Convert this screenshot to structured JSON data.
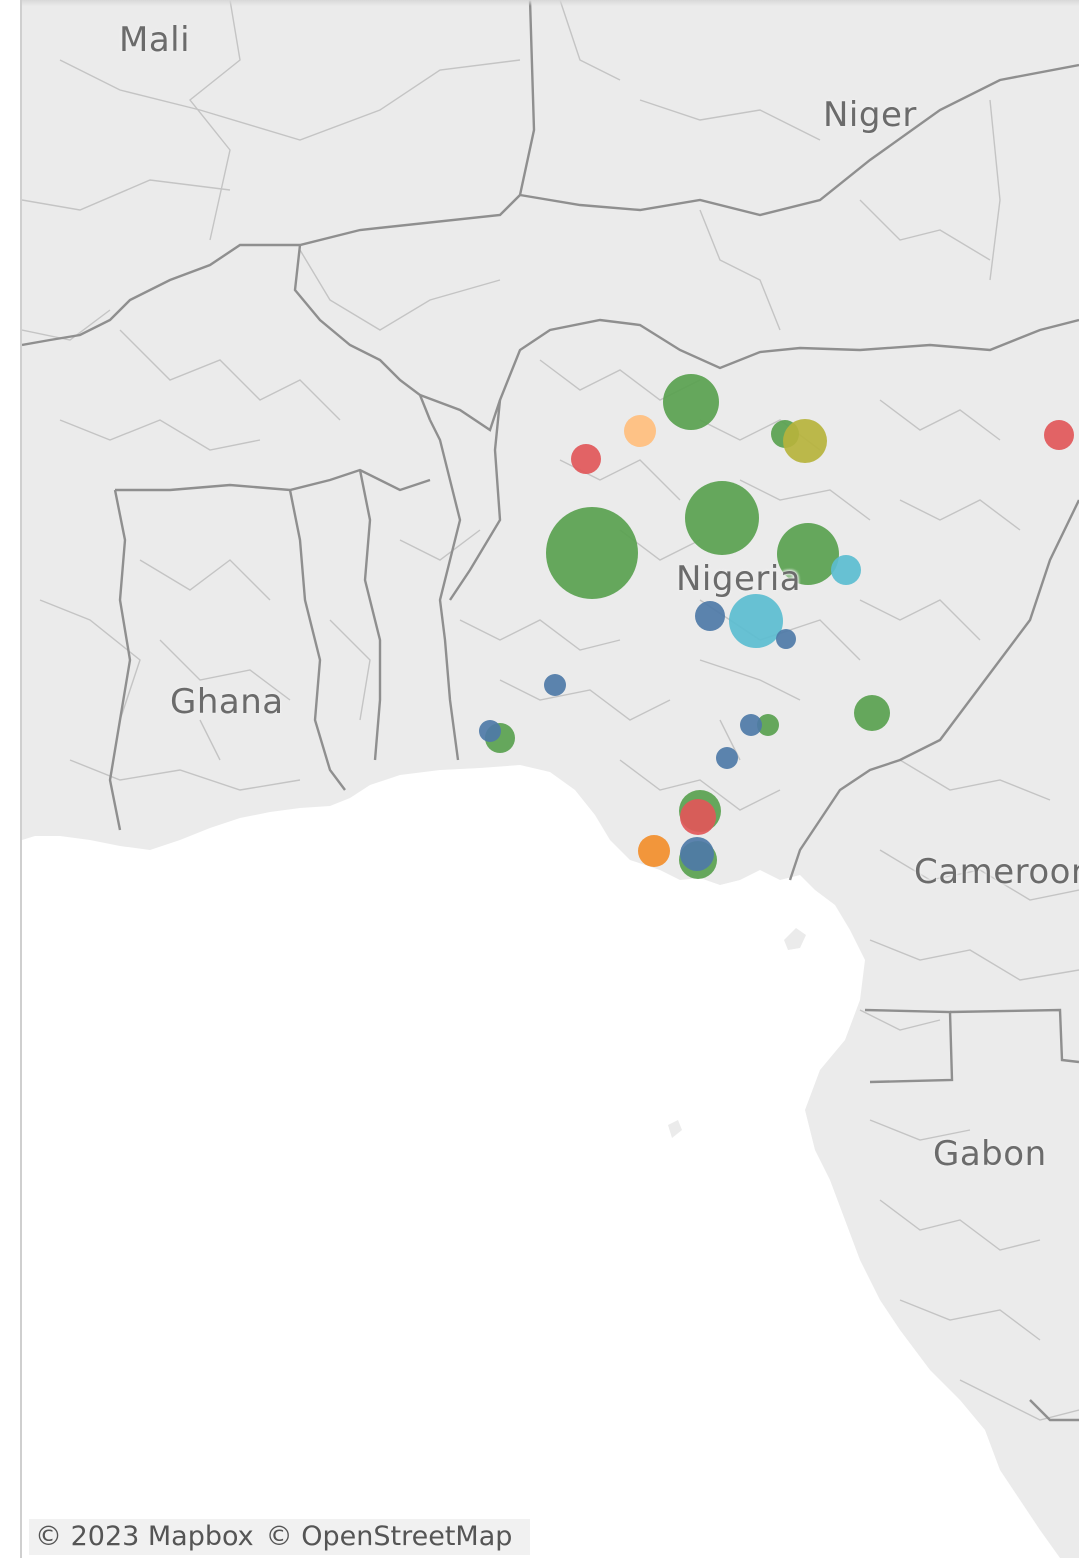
{
  "map": {
    "labels": {
      "mali": "Mali",
      "niger": "Niger",
      "nigeria": "Nigeria",
      "ghana": "Ghana",
      "cameroon": "Cameroon",
      "gabon": "Gabon"
    },
    "attribution": {
      "mapbox": "© 2023 Mapbox",
      "osm": "© OpenStreetMap"
    },
    "colors": {
      "land": "#ebebeb",
      "water": "#ffffff",
      "border": "#8f8f8f",
      "subdivision": "#b5b5b5",
      "green": "#59a14f",
      "blue": "#4e79a7",
      "red": "#e15759",
      "orange": "#f28e2b",
      "light-orange": "#ffbe7d",
      "cyan": "#76b7b2",
      "olive": "#b6b33c"
    }
  }
}
